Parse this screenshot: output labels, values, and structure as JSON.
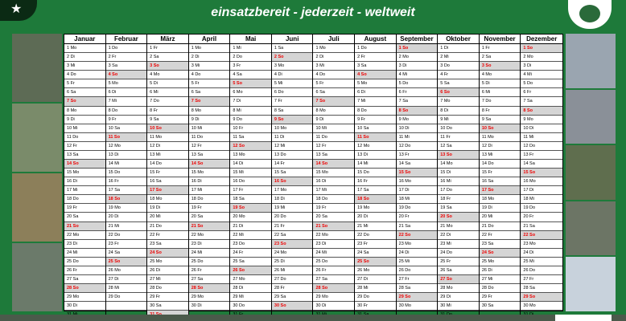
{
  "header": {
    "slogan": "einsatzbereit - jederzeit - weltweit"
  },
  "photos_left": [
    "#5d6b55",
    "#7a8b6a",
    "#8c7f5a",
    "#6b7a6a"
  ],
  "photos_right": [
    "#9aa5b0",
    "#8a9098",
    "#5f6e4e",
    "#6c7565",
    "#c8d2dc"
  ],
  "calendar": {
    "months": [
      {
        "name": "Januar",
        "start_dow": 0,
        "days": 31
      },
      {
        "name": "Februar",
        "start_dow": 3,
        "days": 29
      },
      {
        "name": "März",
        "start_dow": 4,
        "days": 31
      },
      {
        "name": "April",
        "start_dow": 0,
        "days": 30
      },
      {
        "name": "Mai",
        "start_dow": 2,
        "days": 31
      },
      {
        "name": "Juni",
        "start_dow": 5,
        "days": 30
      },
      {
        "name": "Juli",
        "start_dow": 0,
        "days": 31
      },
      {
        "name": "August",
        "start_dow": 3,
        "days": 31
      },
      {
        "name": "September",
        "start_dow": 6,
        "days": 30
      },
      {
        "name": "Oktober",
        "start_dow": 1,
        "days": 31
      },
      {
        "name": "November",
        "start_dow": 4,
        "days": 30
      },
      {
        "name": "Dezember",
        "start_dow": 6,
        "days": 31
      }
    ],
    "dow": [
      "Mo",
      "Di",
      "Mi",
      "Do",
      "Fr",
      "Sa",
      "So"
    ]
  },
  "colors": {
    "bg": "#1e7a3a",
    "sunday_bg": "#d5d5d5",
    "sunday_text": "#e00000"
  }
}
